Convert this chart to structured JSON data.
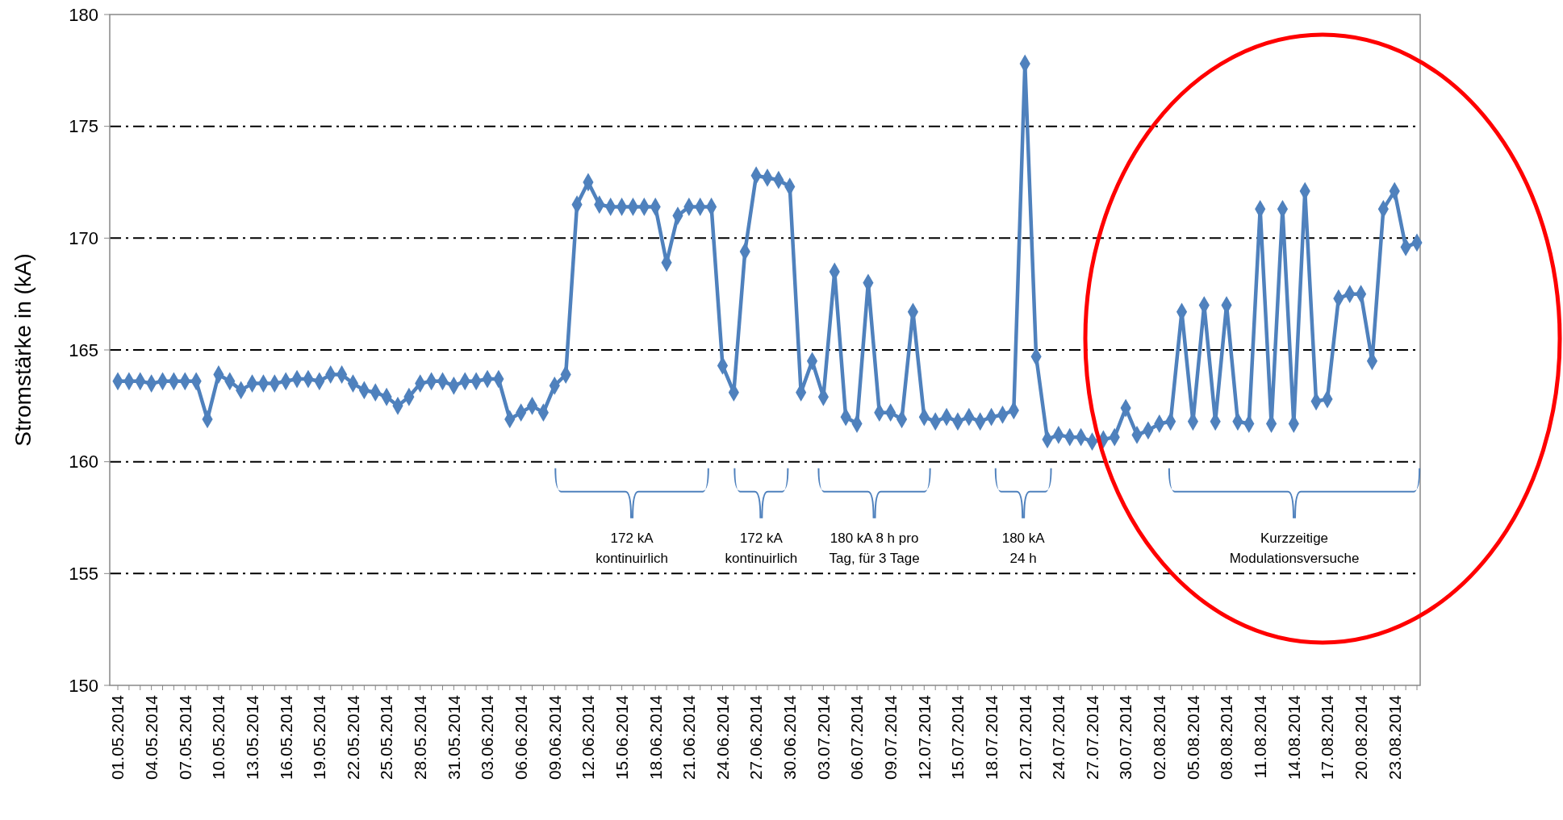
{
  "chart_data": {
    "type": "line",
    "ylabel": "Stromstärke in (kA)",
    "categories": [
      "01.05.2014",
      null,
      null,
      "04.05.2014",
      null,
      null,
      "07.05.2014",
      null,
      null,
      "10.05.2014",
      null,
      null,
      "13.05.2014",
      null,
      null,
      "16.05.2014",
      null,
      null,
      "19.05.2014",
      null,
      null,
      "22.05.2014",
      null,
      null,
      "25.05.2014",
      null,
      null,
      "28.05.2014",
      null,
      null,
      "31.05.2014",
      null,
      null,
      "03.06.2014",
      null,
      null,
      "06.06.2014",
      null,
      null,
      "09.06.2014",
      null,
      null,
      "12.06.2014",
      null,
      null,
      "15.06.2014",
      null,
      null,
      "18.06.2014",
      null,
      null,
      "21.06.2014",
      null,
      null,
      "24.06.2014",
      null,
      null,
      "27.06.2014",
      null,
      null,
      "30.06.2014",
      null,
      null,
      "03.07.2014",
      null,
      null,
      "06.07.2014",
      null,
      null,
      "09.07.2014",
      null,
      null,
      "12.07.2014",
      null,
      null,
      "15.07.2014",
      null,
      null,
      "18.07.2014",
      null,
      null,
      "21.07.2014",
      null,
      null,
      "24.07.2014",
      null,
      null,
      "27.07.2014",
      null,
      null,
      "30.07.2014",
      null,
      null,
      "02.08.2014",
      null,
      null,
      "05.08.2014",
      null,
      null,
      "08.08.2014",
      null,
      null,
      "11.08.2014",
      null,
      null,
      "14.08.2014",
      null,
      null,
      "17.08.2014",
      null,
      null,
      "20.08.2014",
      null,
      null,
      "23.08.2014",
      null,
      null
    ],
    "series": [
      {
        "color": "#4f81bd",
        "values": [
          163.6,
          163.6,
          163.6,
          163.5,
          163.6,
          163.6,
          163.6,
          163.6,
          161.9,
          163.9,
          163.6,
          163.2,
          163.5,
          163.5,
          163.5,
          163.6,
          163.7,
          163.7,
          163.6,
          163.9,
          163.9,
          163.5,
          163.2,
          163.1,
          162.9,
          162.5,
          162.9,
          163.5,
          163.6,
          163.6,
          163.4,
          163.6,
          163.6,
          163.7,
          163.7,
          161.9,
          162.2,
          162.5,
          162.2,
          163.4,
          163.9,
          171.5,
          172.5,
          171.5,
          171.4,
          171.4,
          171.4,
          171.4,
          171.4,
          168.9,
          171.0,
          171.4,
          171.4,
          171.4,
          164.3,
          163.1,
          169.4,
          172.8,
          172.7,
          172.6,
          172.3,
          163.1,
          164.5,
          162.9,
          168.5,
          162.0,
          161.7,
          168.0,
          162.2,
          162.2,
          161.9,
          166.7,
          162.0,
          161.8,
          162.0,
          161.8,
          162.0,
          161.8,
          162.0,
          162.1,
          162.3,
          177.8,
          164.7,
          161.0,
          161.2,
          161.1,
          161.1,
          160.9,
          161.0,
          161.1,
          162.4,
          161.2,
          161.4,
          161.7,
          161.8,
          166.7,
          161.8,
          167.0,
          161.8,
          167.0,
          161.8,
          161.7,
          171.3,
          161.7,
          171.3,
          161.7,
          172.1,
          162.7,
          162.8,
          167.3,
          167.5,
          167.5,
          164.5,
          171.3,
          172.1,
          169.6,
          169.8
        ]
      }
    ],
    "ylim": [
      150,
      180
    ],
    "yticks": [
      150,
      155,
      160,
      165,
      170,
      175,
      180
    ],
    "grid": "y",
    "marker": "diamond",
    "line_style": "solid",
    "annotations": [
      "172 kA\nkontinuirlich",
      "172 kA\nkontinuirlich",
      "180 kA 8 h pro\nTag, für 3 Tage",
      "180 kA\n24 h",
      "Kurzzeitige\nModulationsversuche"
    ]
  }
}
